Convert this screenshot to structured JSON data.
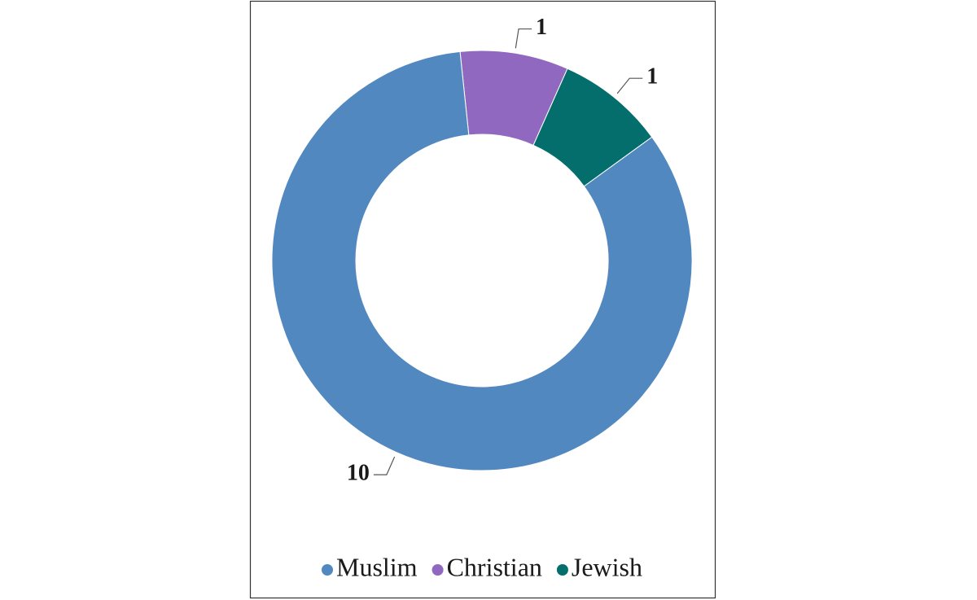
{
  "chart_data": {
    "type": "donut",
    "categories": [
      "Muslim",
      "Christian",
      "Jewish"
    ],
    "values": [
      10,
      1,
      1
    ],
    "colors": [
      "#5288c0",
      "#9068bf",
      "#036e6c"
    ],
    "legend": "bottom"
  }
}
